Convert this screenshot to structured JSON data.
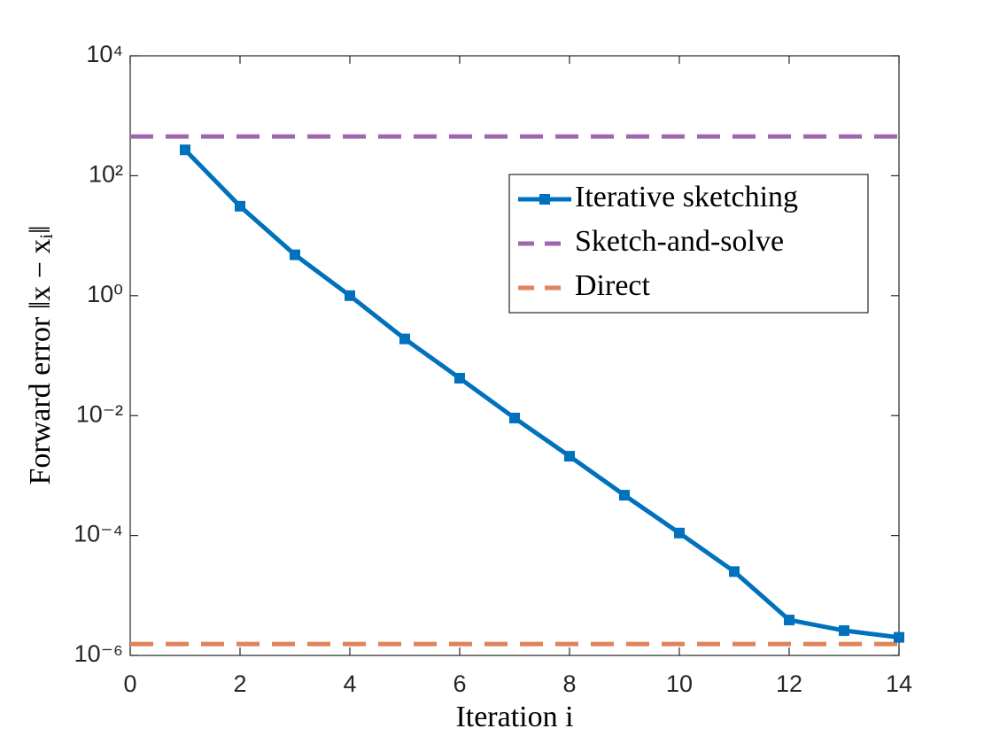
{
  "chart_data": {
    "type": "line",
    "xlabel": "Iteration i",
    "ylabel": "Forward error ‖x − xᵢ‖",
    "x": [
      1,
      2,
      3,
      4,
      5,
      6,
      7,
      8,
      9,
      10,
      11,
      12,
      13,
      14
    ],
    "series": [
      {
        "name": "Iterative sketching",
        "color": "#0072bd",
        "values": [
          270,
          31,
          4.8,
          1.0,
          0.19,
          0.042,
          0.0091,
          0.0021,
          0.00047,
          0.00011,
          2.5e-05,
          3.9e-06,
          2.6e-06,
          2e-06
        ]
      }
    ],
    "reference_lines": [
      {
        "name": "Sketch-and-solve",
        "color": "#a066b0",
        "value": 450
      },
      {
        "name": "Direct",
        "color": "#e0825a",
        "value": 1.55e-06
      }
    ],
    "xlim": [
      0,
      14
    ],
    "xticks": [
      0,
      2,
      4,
      6,
      8,
      10,
      12,
      14
    ],
    "ylim": [
      1e-06,
      10000
    ],
    "log_y": true,
    "yticks": [
      {
        "value": 1e-06,
        "label": "10⁻⁶"
      },
      {
        "value": 0.0001,
        "label": "10⁻⁴"
      },
      {
        "value": 0.01,
        "label": "10⁻²"
      },
      {
        "value": 1,
        "label": "10⁰"
      },
      {
        "value": 100,
        "label": "10²"
      },
      {
        "value": 10000,
        "label": "10⁴"
      }
    ],
    "legend": "upper right"
  }
}
